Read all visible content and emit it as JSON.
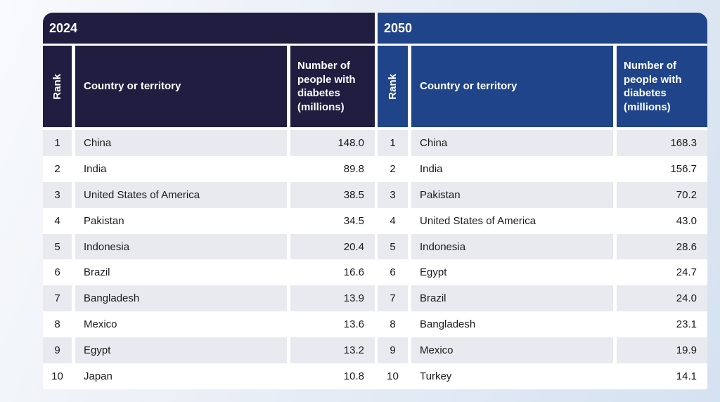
{
  "page": {
    "colors": {
      "background_start": "#f8fafc",
      "background_mid": "#e9eef6",
      "background_end": "#d5e2f1",
      "row_alt": "#e8eaf0",
      "row_base": "#ffffff",
      "body_text": "#1a1a1a",
      "header_text": "#ffffff"
    }
  },
  "tables": [
    {
      "year": "2024",
      "theme_color": "#201d40",
      "columns": {
        "rank": "Rank",
        "country": "Country or territory",
        "value": "Number of people with diabetes (millions)"
      },
      "rows": [
        {
          "rank": "1",
          "country": "China",
          "value": "148.0"
        },
        {
          "rank": "2",
          "country": "India",
          "value": "89.8"
        },
        {
          "rank": "3",
          "country": "United States of America",
          "value": "38.5"
        },
        {
          "rank": "4",
          "country": "Pakistan",
          "value": "34.5"
        },
        {
          "rank": "5",
          "country": "Indonesia",
          "value": "20.4"
        },
        {
          "rank": "6",
          "country": "Brazil",
          "value": "16.6"
        },
        {
          "rank": "7",
          "country": "Bangladesh",
          "value": "13.9"
        },
        {
          "rank": "8",
          "country": "Mexico",
          "value": "13.6"
        },
        {
          "rank": "9",
          "country": "Egypt",
          "value": "13.2"
        },
        {
          "rank": "10",
          "country": "Japan",
          "value": "10.8"
        }
      ]
    },
    {
      "year": "2050",
      "theme_color": "#1f4489",
      "columns": {
        "rank": "Rank",
        "country": "Country or territory",
        "value": "Number of people with diabetes (millions)"
      },
      "rows": [
        {
          "rank": "1",
          "country": "China",
          "value": "168.3"
        },
        {
          "rank": "2",
          "country": "India",
          "value": "156.7"
        },
        {
          "rank": "3",
          "country": "Pakistan",
          "value": "70.2"
        },
        {
          "rank": "4",
          "country": "United States of America",
          "value": "43.0"
        },
        {
          "rank": "5",
          "country": "Indonesia",
          "value": "28.6"
        },
        {
          "rank": "6",
          "country": "Egypt",
          "value": "24.7"
        },
        {
          "rank": "7",
          "country": "Brazil",
          "value": "24.0"
        },
        {
          "rank": "8",
          "country": "Bangladesh",
          "value": "23.1"
        },
        {
          "rank": "9",
          "country": "Mexico",
          "value": "19.9"
        },
        {
          "rank": "10",
          "country": "Turkey",
          "value": "14.1"
        }
      ]
    }
  ],
  "chart_data": [
    {
      "type": "table",
      "title": "2024",
      "columns": [
        "Rank",
        "Country or territory",
        "Number of people with diabetes (millions)"
      ],
      "rows": [
        [
          1,
          "China",
          148.0
        ],
        [
          2,
          "India",
          89.8
        ],
        [
          3,
          "United States of America",
          38.5
        ],
        [
          4,
          "Pakistan",
          34.5
        ],
        [
          5,
          "Indonesia",
          20.4
        ],
        [
          6,
          "Brazil",
          16.6
        ],
        [
          7,
          "Bangladesh",
          13.9
        ],
        [
          8,
          "Mexico",
          13.6
        ],
        [
          9,
          "Egypt",
          13.2
        ],
        [
          10,
          "Japan",
          10.8
        ]
      ]
    },
    {
      "type": "table",
      "title": "2050",
      "columns": [
        "Rank",
        "Country or territory",
        "Number of people with diabetes (millions)"
      ],
      "rows": [
        [
          1,
          "China",
          168.3
        ],
        [
          2,
          "India",
          156.7
        ],
        [
          3,
          "Pakistan",
          70.2
        ],
        [
          4,
          "United States of America",
          43.0
        ],
        [
          5,
          "Indonesia",
          28.6
        ],
        [
          6,
          "Egypt",
          24.7
        ],
        [
          7,
          "Brazil",
          24.0
        ],
        [
          8,
          "Bangladesh",
          23.1
        ],
        [
          9,
          "Mexico",
          19.9
        ],
        [
          10,
          "Turkey",
          14.1
        ]
      ]
    }
  ]
}
